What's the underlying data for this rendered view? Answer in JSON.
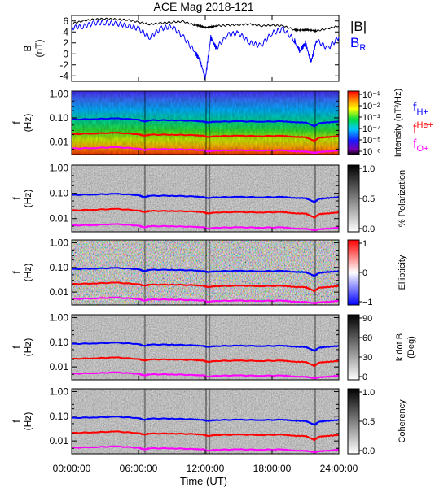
{
  "title": "ACE Mag 2018-121",
  "colors": {
    "B_total": "#000000",
    "B_R": "#0000ff",
    "fH": "#0000ff",
    "fHe": "#ff0000",
    "fO": "#ff00ff",
    "frame": "#000000"
  },
  "x_axis": {
    "label": "Time (UT)",
    "ticks": [
      "00:00:00",
      "06:00:00",
      "12:00:00",
      "18:00:00",
      "24:00:00"
    ],
    "tick_hours": [
      0,
      6,
      12,
      18,
      24
    ],
    "range_hours": [
      0,
      24
    ]
  },
  "freq_axis": {
    "label_line1": "f",
    "label_line2": "(Hz)",
    "ticks": [
      "1.00",
      "0.10",
      "0.01"
    ],
    "tick_values": [
      1.0,
      0.1,
      0.01
    ],
    "range_hz": [
      0.003,
      1.3
    ],
    "scale": "log"
  },
  "line_legend": {
    "fH": {
      "base": "f",
      "sub": "H+"
    },
    "fHe": {
      "base": "f",
      "sup": "He+"
    },
    "fO": {
      "base": "f",
      "sub": "O+"
    }
  },
  "b_legend": {
    "total": "|B|",
    "radial_base": "B",
    "radial_sub": "R"
  },
  "chart_data": [
    {
      "type": "line",
      "panel": "magnetic field",
      "ylabel_line1": "B",
      "ylabel_line2": "(nT)",
      "ylim": [
        -5,
        7
      ],
      "yticks": [
        6,
        4,
        2,
        0,
        -2,
        -4
      ],
      "x": [
        0,
        1,
        2,
        3,
        4,
        5,
        6,
        7,
        8,
        9,
        10,
        11,
        11.5,
        12,
        12.5,
        13,
        14,
        15,
        16,
        17,
        18,
        19,
        20,
        20.5,
        21,
        21.5,
        22,
        23,
        24
      ],
      "series": [
        {
          "name": "|B|",
          "color_key": "B_total",
          "values": [
            5.5,
            6.0,
            6.3,
            6.4,
            6.3,
            6.2,
            5.8,
            5.4,
            5.6,
            5.8,
            5.9,
            5.3,
            5.1,
            4.8,
            4.9,
            5.1,
            5.2,
            5.3,
            5.4,
            5.1,
            5.2,
            5.1,
            4.4,
            4.3,
            4.4,
            4.3,
            4.2,
            4.6,
            5.1
          ]
        },
        {
          "name": "B_R",
          "color_key": "B_R",
          "values": [
            4.8,
            5.0,
            5.6,
            5.7,
            5.5,
            5.2,
            4.6,
            3.0,
            4.6,
            5.0,
            3.2,
            0.5,
            -1.0,
            -4.5,
            3.0,
            1.0,
            3.5,
            3.8,
            2.0,
            1.5,
            3.8,
            4.5,
            2.5,
            0.5,
            2.0,
            -1.5,
            2.5,
            1.0,
            3.0
          ]
        }
      ]
    },
    {
      "type": "heatmap",
      "panel": "intensity",
      "colorbar": {
        "label": "Intensity (nT²/Hz)",
        "scale": "log",
        "range": [
          1e-06,
          0.1
        ],
        "ticks": [
          "10⁻¹",
          "10⁻²",
          "10⁻³",
          "10⁻⁴",
          "10⁻⁵",
          "10⁻⁶"
        ],
        "colormap": "rainbow"
      },
      "legend": "gyrofrequencies"
    },
    {
      "type": "heatmap",
      "panel": "polarization",
      "colorbar": {
        "label": "% Polarization",
        "range": [
          0,
          1
        ],
        "ticks": [
          "1.0",
          "0.5",
          "0.0"
        ],
        "colormap": "gray"
      }
    },
    {
      "type": "heatmap",
      "panel": "ellipticity",
      "colorbar": {
        "label": "Ellipticity",
        "range": [
          -1,
          1
        ],
        "ticks": [
          "1",
          "0",
          "−1"
        ],
        "colormap": "blue-white-red"
      }
    },
    {
      "type": "heatmap",
      "panel": "k dot B",
      "colorbar": {
        "label_line1": "k dot B",
        "label_line2": "(Deg)",
        "range": [
          0,
          90
        ],
        "ticks": [
          "90",
          "60",
          "30",
          "0"
        ],
        "colormap": "gray"
      }
    },
    {
      "type": "heatmap",
      "panel": "coherency",
      "colorbar": {
        "label": "Coherency",
        "range": [
          0,
          1
        ],
        "ticks": [
          "1.0",
          "0.5",
          "0.0"
        ],
        "colormap": "gray"
      }
    },
    {
      "type": "line",
      "panel": "gyrofrequency overlays (all spectrogram panels)",
      "x": [
        0,
        2,
        4,
        6,
        6.5,
        7,
        9,
        11,
        11.8,
        12.2,
        13,
        15,
        17,
        19,
        20,
        21,
        21.8,
        22.2,
        23,
        24
      ],
      "series": [
        {
          "name": "f_H+",
          "color_key": "fH",
          "values": [
            0.085,
            0.09,
            0.095,
            0.085,
            0.07,
            0.08,
            0.08,
            0.075,
            0.07,
            0.065,
            0.07,
            0.072,
            0.07,
            0.072,
            0.065,
            0.065,
            0.045,
            0.06,
            0.065,
            0.07
          ]
        },
        {
          "name": "f_He+",
          "color_key": "fHe",
          "values": [
            0.021,
            0.0225,
            0.024,
            0.021,
            0.018,
            0.02,
            0.02,
            0.019,
            0.018,
            0.016,
            0.0175,
            0.018,
            0.0175,
            0.018,
            0.016,
            0.016,
            0.011,
            0.015,
            0.016,
            0.0175
          ]
        },
        {
          "name": "f_O+",
          "color_key": "fO",
          "values": [
            0.0053,
            0.0056,
            0.006,
            0.0053,
            0.0045,
            0.005,
            0.005,
            0.0047,
            0.0045,
            0.004,
            0.0044,
            0.0045,
            0.0044,
            0.0045,
            0.004,
            0.004,
            0.0035,
            0.0038,
            0.004,
            0.0044
          ]
        }
      ]
    }
  ]
}
